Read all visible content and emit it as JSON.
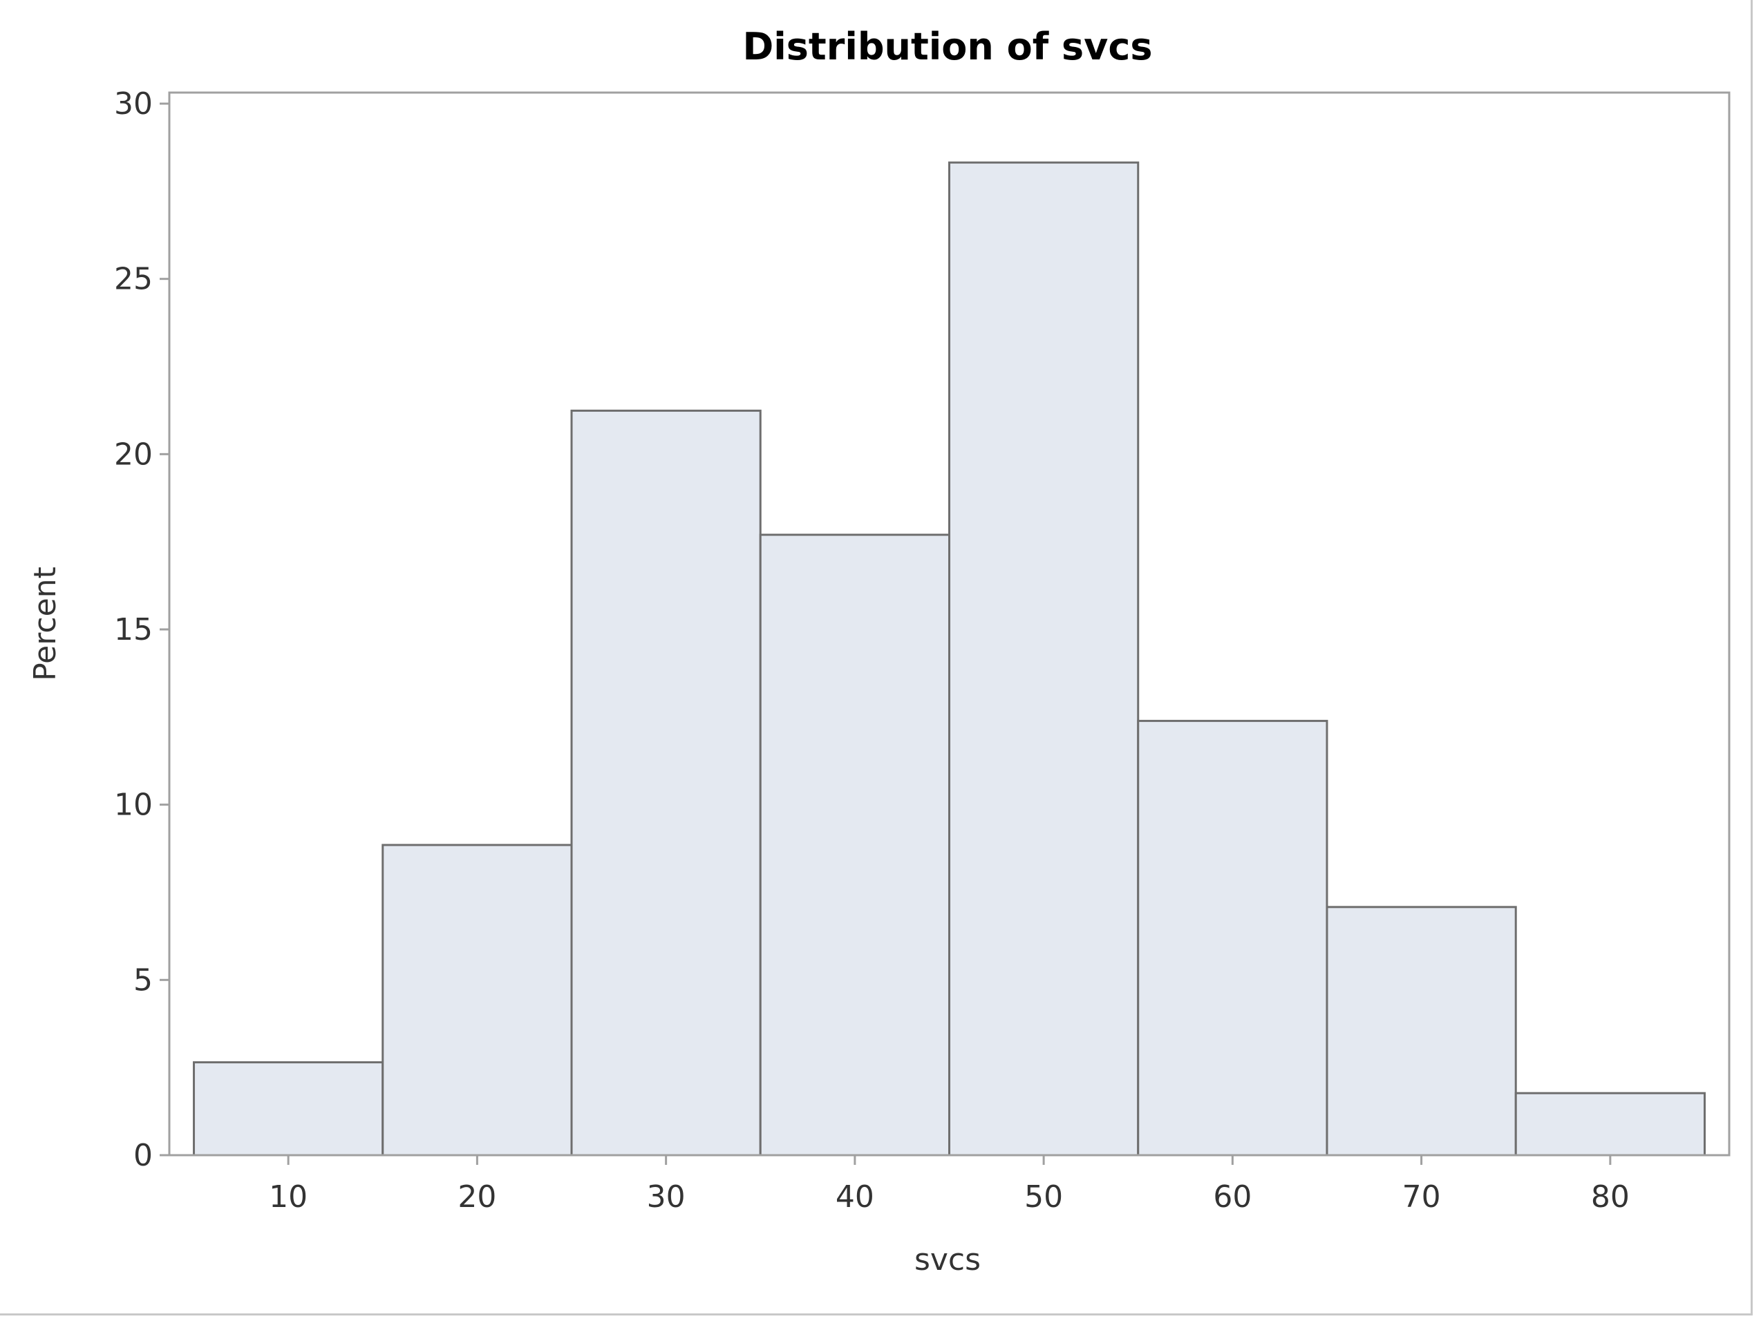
{
  "chart_data": {
    "type": "bar",
    "title": "Distribution of svcs",
    "xlabel": "svcs",
    "ylabel": "Percent",
    "bins": [
      {
        "start": 5,
        "end": 15,
        "center": 10,
        "value": 2.65
      },
      {
        "start": 15,
        "end": 25,
        "center": 20,
        "value": 8.85
      },
      {
        "start": 25,
        "end": 35,
        "center": 30,
        "value": 21.24
      },
      {
        "start": 35,
        "end": 45,
        "center": 40,
        "value": 17.7
      },
      {
        "start": 45,
        "end": 55,
        "center": 50,
        "value": 28.32
      },
      {
        "start": 55,
        "end": 65,
        "center": 60,
        "value": 12.39
      },
      {
        "start": 65,
        "end": 75,
        "center": 70,
        "value": 7.08
      },
      {
        "start": 75,
        "end": 85,
        "center": 80,
        "value": 1.77
      }
    ],
    "xticks": [
      10,
      20,
      30,
      40,
      50,
      60,
      70,
      80
    ],
    "yticks": [
      0,
      5,
      10,
      15,
      20,
      25,
      30
    ],
    "xlim": [
      3.7,
      86.3
    ],
    "ylim": [
      0,
      30
    ],
    "grid": false,
    "legend": "none",
    "colors": {
      "bar_fill": "#e4e9f1",
      "bar_stroke": "#6e6e6e",
      "frame": "#a0a0a0",
      "tick": "#a0a0a0",
      "text": "#333333"
    }
  }
}
